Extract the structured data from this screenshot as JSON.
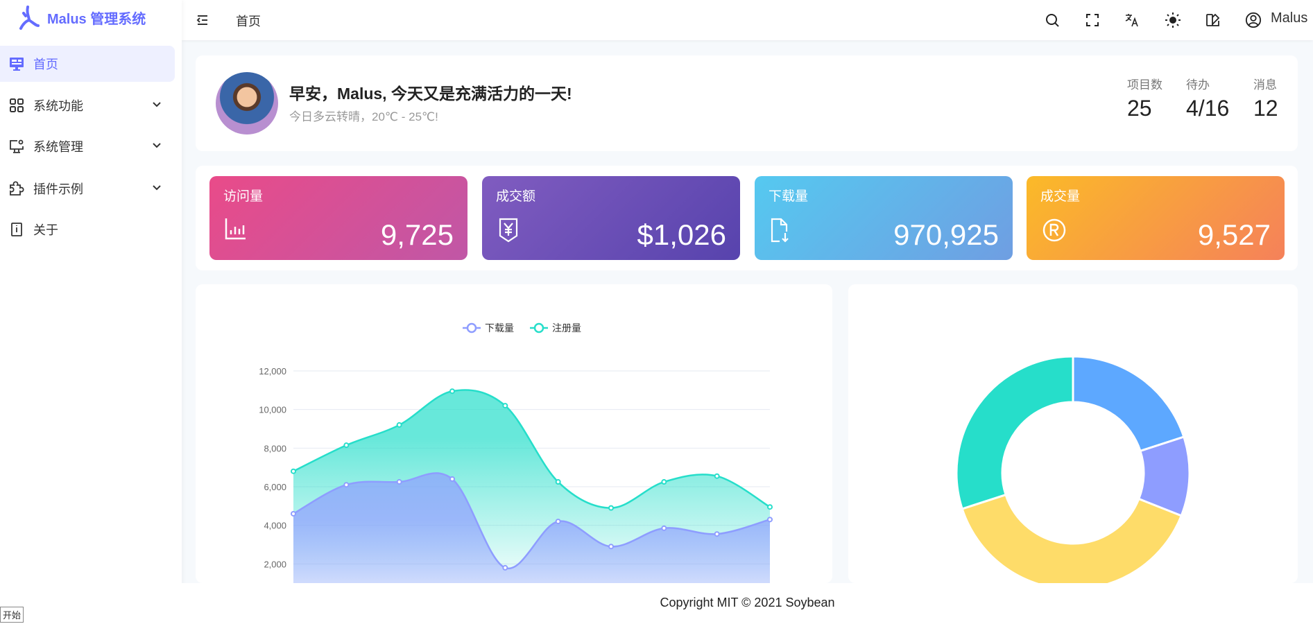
{
  "app": {
    "title": "Malus 管理系统"
  },
  "sidebar": {
    "items": [
      {
        "label": "首页",
        "icon": "monitor-icon",
        "active": true
      },
      {
        "label": "系统功能",
        "icon": "grid-icon"
      },
      {
        "label": "系统管理",
        "icon": "monitor-settings-icon"
      },
      {
        "label": "插件示例",
        "icon": "puzzle-icon"
      },
      {
        "label": "关于",
        "icon": "info-book-icon"
      }
    ]
  },
  "header": {
    "breadcrumb": "首页",
    "user": "Malus",
    "icons": [
      "search-icon",
      "fullscreen-icon",
      "translate-icon",
      "sun-icon",
      "theme-icon",
      "user-circle-icon"
    ]
  },
  "greeting": {
    "title": "早安，Malus, 今天又是充满活力的一天!",
    "subtitle": "今日多云转晴，20℃ - 25℃!",
    "stats": [
      {
        "label": "项目数",
        "value": "25"
      },
      {
        "label": "待办",
        "value": "4/16"
      },
      {
        "label": "消息",
        "value": "12"
      }
    ]
  },
  "cards": [
    {
      "title": "访问量",
      "value": "9,725",
      "icon": "bar-chart-icon",
      "colors": [
        "#e94b89",
        "#c057a6"
      ]
    },
    {
      "title": "成交额",
      "value": "$1,026",
      "icon": "yen-icon",
      "colors": [
        "#805cc0",
        "#5743ad"
      ]
    },
    {
      "title": "下载量",
      "value": "970,925",
      "icon": "file-download-icon",
      "colors": [
        "#55c9f0",
        "#6f9ee2"
      ]
    },
    {
      "title": "成交量",
      "value": "9,527",
      "icon": "registered-icon",
      "colors": [
        "#fbba28",
        "#f5815a"
      ]
    }
  ],
  "chart_data": [
    {
      "type": "area",
      "ylim": [
        0,
        12000
      ],
      "yticks": [
        "2,000",
        "4,000",
        "6,000",
        "8,000",
        "10,000",
        "12,000"
      ],
      "grid": true,
      "legend": "top",
      "series": [
        {
          "name": "下载量",
          "color": "#8e9dff",
          "values": [
            4600,
            6100,
            6250,
            6400,
            1800,
            4200,
            2900,
            3850,
            3550,
            4300
          ]
        },
        {
          "name": "注册量",
          "color": "#26deca",
          "values": [
            6800,
            8150,
            9200,
            10950,
            10200,
            6250,
            4900,
            6250,
            6550,
            4950
          ]
        }
      ]
    },
    {
      "type": "pie",
      "donut": true,
      "values": [
        20,
        11,
        39,
        30
      ],
      "colors": [
        "#5da8ff",
        "#8e9dff",
        "#fedc69",
        "#26deca"
      ]
    }
  ],
  "footer": {
    "text": "Copyright MIT © 2021 Soybean"
  },
  "taskbar": {
    "start": "开始"
  }
}
